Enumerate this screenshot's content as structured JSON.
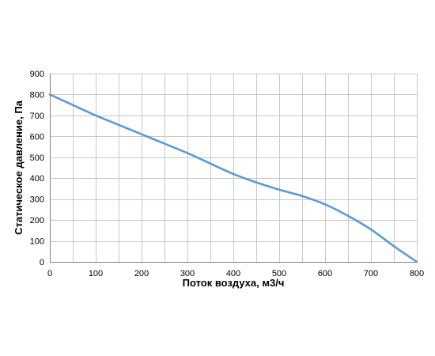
{
  "chart_data": {
    "type": "line",
    "title": "",
    "xlabel": "Поток воздуха, м3/ч",
    "ylabel": "Статическое давление, Па",
    "xlim": [
      0,
      800
    ],
    "ylim": [
      0,
      900
    ],
    "x_ticks": [
      "0",
      "100",
      "200",
      "300",
      "400",
      "500",
      "600",
      "700",
      "800"
    ],
    "y_ticks": [
      "0",
      "100",
      "200",
      "300",
      "400",
      "500",
      "600",
      "700",
      "800",
      "900"
    ],
    "x_minor_grid_step": 50,
    "y_grid_step": 100,
    "grid": true,
    "legend": "none",
    "colors": {
      "line": "#5b9bd5",
      "grid": "#c8c8c8",
      "axis": "#7f7f7f"
    },
    "series": [
      {
        "x": [
          0,
          50,
          100,
          150,
          200,
          250,
          300,
          350,
          400,
          450,
          500,
          550,
          600,
          650,
          700,
          750,
          800
        ],
        "values": [
          800,
          750,
          700,
          655,
          610,
          565,
          520,
          470,
          420,
          380,
          345,
          315,
          275,
          220,
          155,
          75,
          0
        ]
      }
    ]
  }
}
